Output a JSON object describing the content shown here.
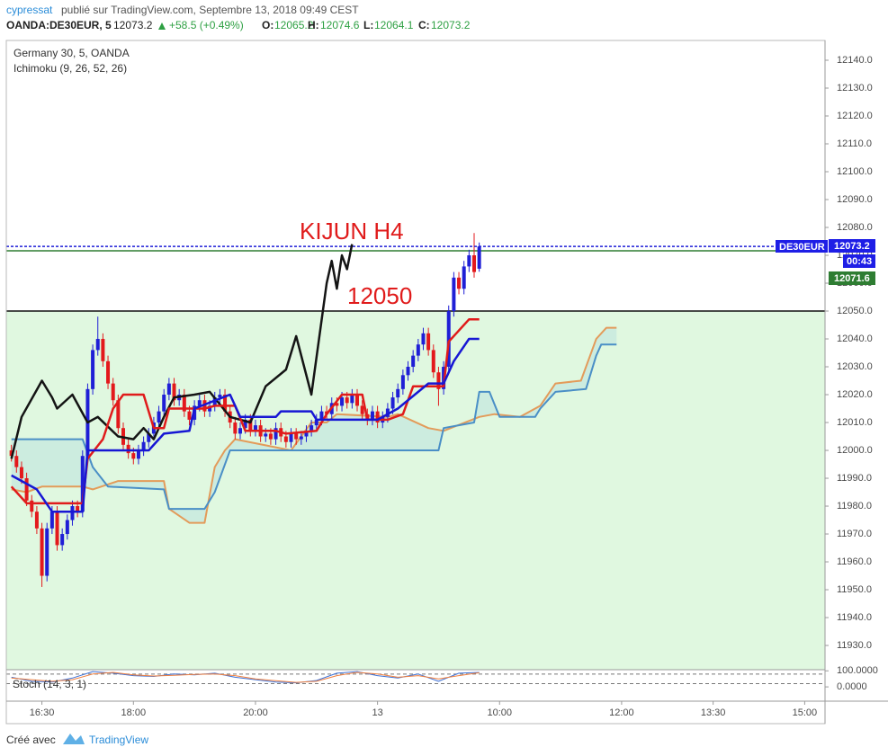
{
  "header": {
    "author": "cypressat",
    "published": "publié sur TradingView.com, Septembre 13, 2018 09:49 CEST",
    "symbol": "OANDA:DE30EUR, 5",
    "change": "+58.5 (+0.49%)",
    "o": "O:",
    "h": "H:",
    "l": "L:",
    "c": "C:"
  },
  "footer": {
    "created": "Créé avec",
    "brand": "TradingView"
  },
  "chart_data": {
    "type": "candlestick",
    "title": "Germany 30, 5, OANDA",
    "indicator": "Ichimoku (9, 26, 52, 26)",
    "symbol_tag": "DE30EUR",
    "countdown": "00:43",
    "up_color": "#1f1fd6",
    "down_color": "#e3191c",
    "xlim": [
      -1,
      160
    ],
    "xticks": [
      {
        "value": 6,
        "label": "16:30"
      },
      {
        "value": 24,
        "label": "18:00"
      },
      {
        "value": 48,
        "label": "20:00"
      },
      {
        "value": 72,
        "label": "13"
      },
      {
        "value": 96,
        "label": "10:00"
      },
      {
        "value": 120,
        "label": "12:00"
      },
      {
        "value": 138,
        "label": "13:30"
      },
      {
        "value": 156,
        "label": "15:00"
      }
    ],
    "ylim": [
      11921.3,
      12147.1
    ],
    "yticks": [
      {
        "value": 11930,
        "label": "11930.0"
      },
      {
        "value": 11940,
        "label": "11940.0"
      },
      {
        "value": 11950,
        "label": "11950.0"
      },
      {
        "value": 11960,
        "label": "11960.0"
      },
      {
        "value": 11970,
        "label": "11970.0"
      },
      {
        "value": 11980,
        "label": "11980.0"
      },
      {
        "value": 11990,
        "label": "11990.0"
      },
      {
        "value": 12000,
        "label": "12000.0"
      },
      {
        "value": 12010,
        "label": "12010.0"
      },
      {
        "value": 12020,
        "label": "12020.0"
      },
      {
        "value": 12030,
        "label": "12030.0"
      },
      {
        "value": 12040,
        "label": "12040.0"
      },
      {
        "value": 12050,
        "label": "12050.0"
      },
      {
        "value": 12060,
        "label": "12060.0"
      },
      {
        "value": 12070,
        "label": "12070.0"
      },
      {
        "value": 12080,
        "label": "12080.0"
      },
      {
        "value": 12090,
        "label": "12090.0"
      },
      {
        "value": 12100,
        "label": "12100.0"
      },
      {
        "value": 12110,
        "label": "12110.0"
      },
      {
        "value": 12120,
        "label": "12120.0"
      },
      {
        "value": 12130,
        "label": "12130.0"
      },
      {
        "value": 12140,
        "label": "12140.0"
      }
    ],
    "candles": {
      "open": [
        12000,
        11998,
        11994,
        11990,
        11982,
        11978,
        11972,
        11955,
        11972,
        11978,
        11966,
        11970,
        11975,
        11980,
        11978,
        11998,
        12022,
        12036,
        12040,
        12032,
        12024,
        12018,
        12008,
        12002,
        11999,
        11997,
        12000,
        12003,
        12006,
        12010,
        12014,
        12020,
        12024,
        12018,
        12020,
        12014,
        12011,
        12016,
        12018,
        12014,
        12016,
        12019,
        12020,
        12014,
        12010,
        12006,
        12008,
        12011,
        12007,
        12009,
        12005,
        12006,
        12004,
        12008,
        12005,
        12003,
        12006,
        12004,
        12005,
        12007,
        12009,
        12011,
        12014,
        12013,
        12017,
        12016,
        12019,
        12017,
        12020,
        12016,
        12013,
        12011,
        12014,
        12010,
        12012,
        12015,
        12019,
        12022,
        12027,
        12030,
        12034,
        12038,
        12042,
        12036,
        12028,
        12022,
        12030,
        12050,
        12062,
        12058,
        12066,
        12070,
        12065.2
      ],
      "high": [
        12002,
        12000,
        11996,
        11992,
        11984,
        11980,
        11974,
        11974,
        11980,
        11980,
        11972,
        11977,
        11982,
        11982,
        12000,
        12024,
        12038,
        12048,
        12042,
        12034,
        12026,
        12020,
        12010,
        12004,
        12001,
        12002,
        12005,
        12008,
        12012,
        12016,
        12022,
        12026,
        12026,
        12022,
        12022,
        12016,
        12018,
        12020,
        12020,
        12018,
        12021,
        12022,
        12022,
        12016,
        12012,
        12010,
        12013,
        12013,
        12011,
        12011,
        12008,
        12008,
        12010,
        12010,
        12007,
        12008,
        12008,
        12007,
        12009,
        12011,
        12013,
        12016,
        12016,
        12019,
        12019,
        12021,
        12021,
        12022,
        12022,
        12018,
        12015,
        12016,
        12016,
        12014,
        12017,
        12021,
        12024,
        12029,
        12032,
        12036,
        12040,
        12044,
        12044,
        12038,
        12030,
        12032,
        12052,
        12064,
        12064,
        12068,
        12072,
        12078,
        12074.6
      ],
      "low": [
        11996,
        11992,
        11988,
        11980,
        11976,
        11970,
        11951,
        11953,
        11970,
        11964,
        11964,
        11968,
        11973,
        11976,
        11976,
        11996,
        12020,
        12034,
        12030,
        12022,
        12016,
        12006,
        12000,
        11997,
        11995,
        11995,
        11998,
        12001,
        12004,
        12008,
        12012,
        12018,
        12016,
        12016,
        12012,
        12009,
        12009,
        12014,
        12012,
        12012,
        12014,
        12017,
        12012,
        12008,
        12004,
        12004,
        12006,
        12005,
        12005,
        12003,
        12003,
        12002,
        12002,
        12003,
        12001,
        12001,
        12002,
        12002,
        12003,
        12005,
        12007,
        12009,
        12011,
        12011,
        12014,
        12014,
        12015,
        12015,
        12014,
        12011,
        12009,
        12009,
        12008,
        12008,
        12010,
        12013,
        12017,
        12020,
        12025,
        12028,
        12032,
        12036,
        12034,
        12026,
        12016,
        12020,
        12028,
        12048,
        12056,
        12056,
        12064,
        12062,
        12064.1
      ],
      "close": [
        11998,
        11994,
        11990,
        11982,
        11978,
        11972,
        11955,
        11972,
        11978,
        11966,
        11970,
        11975,
        11980,
        11978,
        11998,
        12022,
        12036,
        12040,
        12032,
        12024,
        12018,
        12008,
        12002,
        11999,
        11997,
        12000,
        12003,
        12006,
        12010,
        12014,
        12020,
        12024,
        12018,
        12020,
        12014,
        12011,
        12016,
        12018,
        12014,
        12016,
        12019,
        12020,
        12014,
        12010,
        12006,
        12008,
        12011,
        12007,
        12009,
        12005,
        12006,
        12004,
        12008,
        12005,
        12003,
        12006,
        12004,
        12005,
        12007,
        12009,
        12011,
        12014,
        12013,
        12017,
        12016,
        12019,
        12017,
        12020,
        12016,
        12013,
        12011,
        12014,
        12010,
        12012,
        12015,
        12019,
        12022,
        12027,
        12030,
        12034,
        12038,
        12042,
        12036,
        12028,
        12022,
        12030,
        12050,
        12062,
        12058,
        12066,
        12070,
        12064,
        12073.2
      ]
    },
    "lines": [
      {
        "color": "#e39b5a",
        "width": 2,
        "x": [
          0,
          3,
          6,
          14,
          16,
          21,
          30,
          31,
          35,
          38,
          40,
          42,
          44,
          55,
          57,
          59,
          62,
          64,
          74,
          76,
          82,
          85,
          92,
          95,
          100,
          104,
          107,
          112,
          115,
          117,
          119
        ],
        "values": [
          11986,
          11985,
          11987,
          11987,
          11986,
          11989,
          11989,
          11979,
          11974,
          11974,
          11994,
          12000,
          12004,
          12000,
          12005,
          12010,
          12010,
          12013,
          12012,
          12013,
          12008,
          12007,
          12012,
          12013,
          12012,
          12016,
          12024,
          12025,
          12040,
          12044,
          12044
        ]
      },
      {
        "color": "#4a8fc6",
        "width": 2,
        "fill": "#c7e8df",
        "x": [
          0,
          14,
          16,
          19,
          30,
          31,
          38,
          40,
          43,
          84,
          85,
          91,
          92,
          94,
          96,
          103,
          104,
          107,
          113,
          115,
          116,
          119
        ],
        "values": [
          12004,
          12004,
          11994,
          11987,
          11986,
          11979,
          11979,
          11985,
          12000,
          12000,
          12008,
          12010,
          12021,
          12021,
          12012,
          12012,
          12015,
          12021,
          12022,
          12034,
          12038,
          12038
        ]
      },
      {
        "color": "#141414",
        "width": 2.5,
        "x": [
          0,
          2,
          6,
          8,
          9,
          12,
          15,
          17,
          21,
          24,
          26,
          28,
          30,
          32,
          36,
          39,
          43,
          47,
          50,
          54,
          56,
          59,
          62,
          63,
          64,
          65,
          66,
          67
        ],
        "values": [
          11997,
          12012,
          12025,
          12019,
          12015,
          12020,
          12010,
          12012,
          12005,
          12004,
          12008,
          12004,
          12012,
          12019,
          12020,
          12021,
          12012,
          12010,
          12023,
          12029,
          12041,
          12020,
          12060,
          12068,
          12058,
          12070,
          12065,
          12074
        ]
      },
      {
        "color": "#e01b1b",
        "width": 2.5,
        "x": [
          0,
          3,
          14,
          15,
          18,
          20,
          22,
          26,
          28,
          30,
          31,
          38,
          40,
          44,
          46,
          52,
          54,
          60,
          62,
          65,
          69,
          70,
          74,
          77,
          79,
          85,
          86,
          90,
          92
        ],
        "values": [
          11987,
          11981,
          11981,
          11997,
          12004,
          12015,
          12020,
          12020,
          12008,
          12008,
          12015,
          12015,
          12016,
          12016,
          12007,
          12007,
          12006,
          12007,
          12013,
          12020,
          12020,
          12011,
          12011,
          12013,
          12023,
          12023,
          12039,
          12047,
          12047
        ]
      },
      {
        "color": "#1717d4",
        "width": 2.5,
        "x": [
          0,
          5,
          8,
          14,
          15,
          27,
          30,
          35,
          36,
          43,
          45,
          52,
          53,
          59,
          60,
          72,
          76,
          82,
          85,
          87,
          90,
          92
        ],
        "values": [
          11991,
          11986,
          11978,
          11978,
          12000,
          12000,
          12006,
          12007,
          12015,
          12020,
          12012,
          12012,
          12014,
          12014,
          12011,
          12011,
          12015,
          12024,
          12024,
          12032,
          12040,
          12040
        ]
      }
    ],
    "hlines": [
      {
        "value": 12050,
        "color": "#111111",
        "fill_below": "#e0f8e0"
      },
      {
        "value": 12071.6,
        "color": "#2e7d32"
      }
    ],
    "annotations": [
      {
        "text": "KIJUN H4",
        "color": "#e01b1b"
      },
      {
        "text": "12050",
        "color": "#e01b1b"
      }
    ],
    "stoch": {
      "title": "Stoch (14, 3, 1)",
      "ylim": [
        -89,
        107
      ],
      "yticks": [
        {
          "value": 100,
          "label": "100.0000"
        },
        {
          "value": 0,
          "label": "0.0000"
        }
      ],
      "bands": [
        80,
        20
      ],
      "series": [
        {
          "color": "#3f72d6",
          "x": [
            0,
            4,
            8,
            12,
            16,
            20,
            24,
            28,
            32,
            36,
            40,
            44,
            48,
            52,
            56,
            60,
            64,
            68,
            72,
            76,
            80,
            84,
            88,
            92
          ],
          "values": [
            60,
            35,
            30,
            55,
            95,
            85,
            70,
            65,
            80,
            75,
            85,
            60,
            45,
            30,
            25,
            40,
            85,
            95,
            70,
            55,
            80,
            35,
            85,
            90
          ]
        },
        {
          "color": "#f08040",
          "x": [
            0,
            4,
            8,
            12,
            16,
            20,
            24,
            28,
            32,
            36,
            40,
            44,
            48,
            52,
            56,
            60,
            64,
            68,
            72,
            76,
            80,
            84,
            88,
            92
          ],
          "values": [
            55,
            45,
            35,
            45,
            80,
            90,
            75,
            68,
            72,
            78,
            80,
            70,
            50,
            38,
            28,
            35,
            70,
            90,
            80,
            60,
            70,
            50,
            70,
            88
          ]
        }
      ]
    }
  }
}
